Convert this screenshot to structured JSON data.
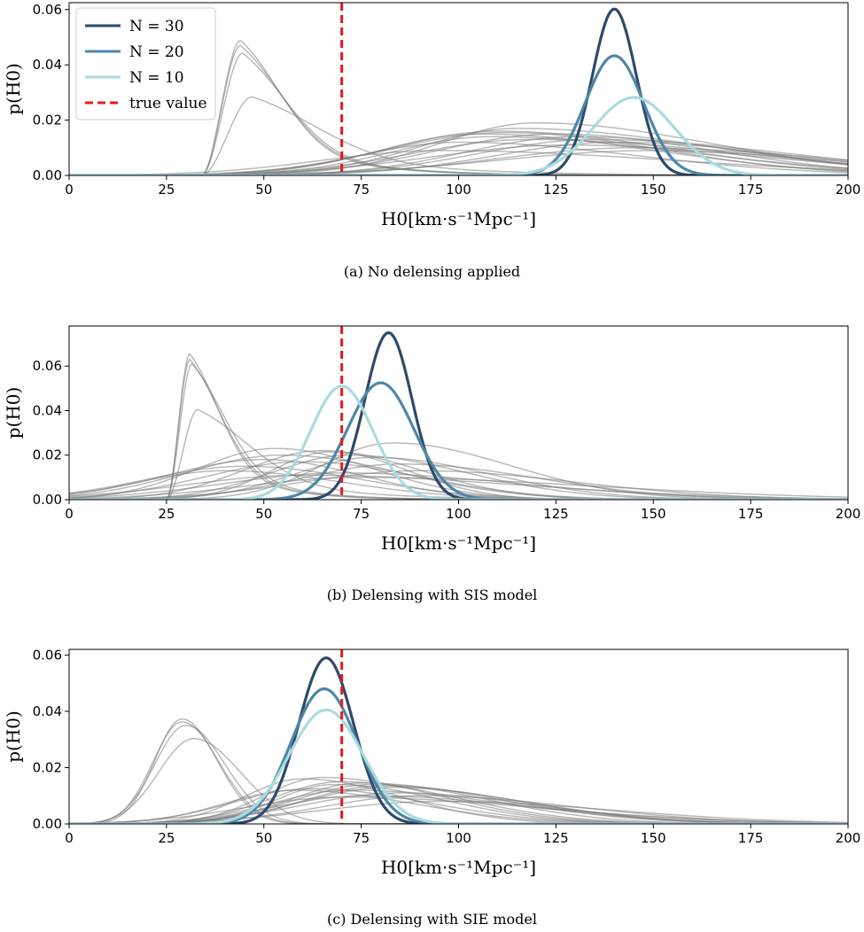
{
  "figure": {
    "legend": [
      {
        "label": "N = 30",
        "color": "#2e4a6b"
      },
      {
        "label": "N = 20",
        "color": "#4e86a8"
      },
      {
        "label": "N = 10",
        "color": "#a9dbde"
      },
      {
        "label": "true value",
        "color": "#e41a1c"
      }
    ],
    "true_value": 70,
    "colors": {
      "grey": "#7a7a7a",
      "n30": "#2e4a6b",
      "n20": "#4e86a8",
      "n10": "#a9dbde",
      "truth": "#e41a1c"
    }
  },
  "chart_data": [
    {
      "type": "line",
      "caption": "(a)  No delensing applied",
      "xlabel": "H0[km·s⁻¹Mpc⁻¹]",
      "ylabel": "p(H0)",
      "xlim": [
        0,
        200
      ],
      "ylim": [
        0,
        0.0625
      ],
      "xticks": [
        0,
        25,
        50,
        75,
        100,
        125,
        150,
        175,
        200
      ],
      "yticks": [
        0.0,
        0.02,
        0.04,
        0.06
      ],
      "ytick_labels": [
        "0.00",
        "0.02",
        "0.04",
        "0.06"
      ],
      "series": [
        {
          "name": "N = 30",
          "color": "#2e4a6b",
          "shape": "sharp",
          "mu": 140,
          "sig": 5.6,
          "peak": 0.0602
        },
        {
          "name": "N = 20",
          "color": "#4e86a8",
          "shape": "sharp",
          "mu": 140,
          "sig": 7.5,
          "peak": 0.0433
        },
        {
          "name": "N = 10",
          "color": "#a9dbde",
          "shape": "sharp",
          "mu": 145,
          "sig": 10.5,
          "peak": 0.0282
        }
      ],
      "individual": [
        {
          "shape": "cut",
          "start": 34,
          "mu": 44,
          "sig": 11,
          "peak": 0.0488
        },
        {
          "shape": "cut",
          "start": 34,
          "mu": 44,
          "sig": 11.5,
          "peak": 0.047
        },
        {
          "shape": "cut",
          "start": 34,
          "mu": 44.5,
          "sig": 12,
          "peak": 0.0442
        },
        {
          "shape": "cut",
          "start": 34,
          "mu": 47,
          "sig": 18,
          "peak": 0.0284
        },
        {
          "shape": "skew",
          "mu": 105,
          "sl": 25,
          "sr": 45,
          "peak": 0.015
        },
        {
          "shape": "skew",
          "mu": 110,
          "sl": 28,
          "sr": 45,
          "peak": 0.016
        },
        {
          "shape": "skew",
          "mu": 115,
          "sl": 25,
          "sr": 50,
          "peak": 0.017
        },
        {
          "shape": "skew",
          "mu": 120,
          "sl": 25,
          "sr": 45,
          "peak": 0.019
        },
        {
          "shape": "skew",
          "mu": 125,
          "sl": 30,
          "sr": 40,
          "peak": 0.015
        },
        {
          "shape": "skew",
          "mu": 130,
          "sl": 28,
          "sr": 45,
          "peak": 0.014
        },
        {
          "shape": "skew",
          "mu": 135,
          "sl": 30,
          "sr": 50,
          "peak": 0.013
        },
        {
          "shape": "skew",
          "mu": 140,
          "sl": 30,
          "sr": 45,
          "peak": 0.012
        },
        {
          "shape": "skew",
          "mu": 108,
          "sl": 25,
          "sr": 50,
          "peak": 0.014
        },
        {
          "shape": "skew",
          "mu": 118,
          "sl": 30,
          "sr": 55,
          "peak": 0.013
        },
        {
          "shape": "skew",
          "mu": 128,
          "sl": 35,
          "sr": 50,
          "peak": 0.011
        },
        {
          "shape": "skew",
          "mu": 100,
          "sl": 25,
          "sr": 45,
          "peak": 0.012
        },
        {
          "shape": "skew",
          "mu": 145,
          "sl": 35,
          "sr": 50,
          "peak": 0.01
        },
        {
          "shape": "skew",
          "mu": 112,
          "sl": 30,
          "sr": 40,
          "peak": 0.0155
        },
        {
          "shape": "skew",
          "mu": 95,
          "sl": 30,
          "sr": 60,
          "peak": 0.009
        },
        {
          "shape": "skew",
          "mu": 150,
          "sl": 40,
          "sr": 45,
          "peak": 0.009
        }
      ]
    },
    {
      "type": "line",
      "caption": "(b)  Delensing with SIS model",
      "xlabel": "H0[km·s⁻¹Mpc⁻¹]",
      "ylabel": "p(H0)",
      "xlim": [
        0,
        200
      ],
      "ylim": [
        0,
        0.078
      ],
      "xticks": [
        0,
        25,
        50,
        75,
        100,
        125,
        150,
        175,
        200
      ],
      "yticks": [
        0.0,
        0.02,
        0.04,
        0.06
      ],
      "ytick_labels": [
        "0.00",
        "0.02",
        "0.04",
        "0.06"
      ],
      "series": [
        {
          "name": "N = 30",
          "color": "#2e4a6b",
          "shape": "sharp",
          "mu": 82,
          "sig": 6,
          "peak": 0.075
        },
        {
          "name": "N = 20",
          "color": "#4e86a8",
          "shape": "sharp",
          "mu": 80,
          "sig": 8.5,
          "peak": 0.0525
        },
        {
          "name": "N = 10",
          "color": "#a9dbde",
          "shape": "sharp",
          "mu": 70,
          "sig": 8,
          "peak": 0.051
        }
      ],
      "individual": [
        {
          "shape": "cut",
          "start": 25,
          "mu": 31,
          "sig": 8,
          "peak": 0.0655
        },
        {
          "shape": "cut",
          "start": 25,
          "mu": 31,
          "sig": 8.5,
          "peak": 0.063
        },
        {
          "shape": "cut",
          "start": 25,
          "mu": 31.5,
          "sig": 9,
          "peak": 0.061
        },
        {
          "shape": "cut",
          "start": 25,
          "mu": 33,
          "sig": 14,
          "peak": 0.0405
        },
        {
          "shape": "skew",
          "mu": 50,
          "sl": 25,
          "sr": 25,
          "peak": 0.018
        },
        {
          "shape": "skew",
          "mu": 53,
          "sl": 20,
          "sr": 25,
          "peak": 0.023
        },
        {
          "shape": "skew",
          "mu": 55,
          "sl": 25,
          "sr": 30,
          "peak": 0.02
        },
        {
          "shape": "skew",
          "mu": 60,
          "sl": 25,
          "sr": 30,
          "peak": 0.017
        },
        {
          "shape": "skew",
          "mu": 65,
          "sl": 20,
          "sr": 25,
          "peak": 0.022
        },
        {
          "shape": "skew",
          "mu": 67,
          "sl": 15,
          "sr": 20,
          "peak": 0.0215
        },
        {
          "shape": "skew",
          "mu": 72,
          "sl": 20,
          "sr": 30,
          "peak": 0.02
        },
        {
          "shape": "skew",
          "mu": 78,
          "sl": 20,
          "sr": 30,
          "peak": 0.019
        },
        {
          "shape": "skew",
          "mu": 83,
          "sl": 18,
          "sr": 30,
          "peak": 0.0255
        },
        {
          "shape": "skew",
          "mu": 85,
          "sl": 25,
          "sr": 35,
          "peak": 0.016
        },
        {
          "shape": "skew",
          "mu": 45,
          "sl": 25,
          "sr": 30,
          "peak": 0.015
        },
        {
          "shape": "skew",
          "mu": 70,
          "sl": 30,
          "sr": 45,
          "peak": 0.012
        },
        {
          "shape": "skew",
          "mu": 90,
          "sl": 30,
          "sr": 40,
          "peak": 0.013
        },
        {
          "shape": "skew",
          "mu": 75,
          "sl": 30,
          "sr": 60,
          "peak": 0.01
        },
        {
          "shape": "skew",
          "mu": 60,
          "sl": 30,
          "sr": 55,
          "peak": 0.011
        },
        {
          "shape": "skew",
          "mu": 40,
          "sl": 22,
          "sr": 30,
          "peak": 0.013
        }
      ]
    },
    {
      "type": "line",
      "caption": "(c)  Delensing with SIE model",
      "xlabel": "H0[km·s⁻¹Mpc⁻¹]",
      "ylabel": "p(H0)",
      "xlim": [
        0,
        200
      ],
      "ylim": [
        0,
        0.062
      ],
      "xticks": [
        0,
        25,
        50,
        75,
        100,
        125,
        150,
        175,
        200
      ],
      "yticks": [
        0.0,
        0.02,
        0.04,
        0.06
      ],
      "ytick_labels": [
        "0.00",
        "0.02",
        "0.04",
        "0.06"
      ],
      "series": [
        {
          "name": "N = 30",
          "color": "#2e4a6b",
          "shape": "sharp",
          "mu": 66,
          "sig": 7,
          "peak": 0.059
        },
        {
          "name": "N = 20",
          "color": "#4e86a8",
          "shape": "sharp",
          "mu": 65.5,
          "sig": 8.5,
          "peak": 0.048
        },
        {
          "name": "N = 10",
          "color": "#a9dbde",
          "shape": "sharp",
          "mu": 66,
          "sig": 9.5,
          "peak": 0.0405
        }
      ],
      "individual": [
        {
          "shape": "skew",
          "mu": 29,
          "sl": 7,
          "sr": 9,
          "peak": 0.0373
        },
        {
          "shape": "skew",
          "mu": 29,
          "sl": 7.5,
          "sr": 9.5,
          "peak": 0.0362
        },
        {
          "shape": "skew",
          "mu": 30,
          "sl": 8,
          "sr": 10,
          "peak": 0.035
        },
        {
          "shape": "skew",
          "mu": 32,
          "sl": 9,
          "sr": 12,
          "peak": 0.0303
        },
        {
          "shape": "skew",
          "mu": 60,
          "sl": 15,
          "sr": 25,
          "peak": 0.016
        },
        {
          "shape": "skew",
          "mu": 65,
          "sl": 15,
          "sr": 30,
          "peak": 0.0165
        },
        {
          "shape": "skew",
          "mu": 70,
          "sl": 18,
          "sr": 30,
          "peak": 0.015
        },
        {
          "shape": "skew",
          "mu": 75,
          "sl": 18,
          "sr": 35,
          "peak": 0.0145
        },
        {
          "shape": "skew",
          "mu": 78,
          "sl": 20,
          "sr": 30,
          "peak": 0.014
        },
        {
          "shape": "skew",
          "mu": 80,
          "sl": 20,
          "sr": 35,
          "peak": 0.0135
        },
        {
          "shape": "skew",
          "mu": 82,
          "sl": 22,
          "sr": 35,
          "peak": 0.013
        },
        {
          "shape": "skew",
          "mu": 72,
          "sl": 20,
          "sr": 40,
          "peak": 0.012
        },
        {
          "shape": "skew",
          "mu": 68,
          "sl": 15,
          "sr": 28,
          "peak": 0.014
        },
        {
          "shape": "skew",
          "mu": 85,
          "sl": 25,
          "sr": 35,
          "peak": 0.011
        },
        {
          "shape": "skew",
          "mu": 75,
          "sl": 22,
          "sr": 45,
          "peak": 0.01
        },
        {
          "shape": "skew",
          "mu": 62,
          "sl": 20,
          "sr": 30,
          "peak": 0.0125
        },
        {
          "shape": "skew",
          "mu": 90,
          "sl": 25,
          "sr": 40,
          "peak": 0.01
        },
        {
          "shape": "skew",
          "mu": 70,
          "sl": 25,
          "sr": 50,
          "peak": 0.0095
        },
        {
          "shape": "skew",
          "mu": 58,
          "sl": 18,
          "sr": 30,
          "peak": 0.012
        },
        {
          "shape": "skew",
          "mu": 95,
          "sl": 30,
          "sr": 45,
          "peak": 0.008
        }
      ]
    }
  ]
}
